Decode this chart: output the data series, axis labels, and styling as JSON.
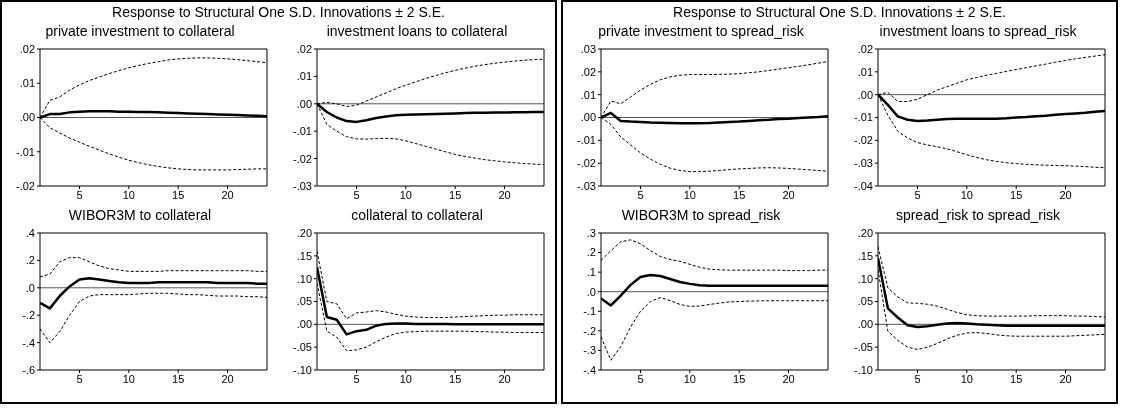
{
  "chart_data": [
    {
      "type": "line",
      "annotations": [
        "Response to Structural One S.D. Innovations ± 2 S.E."
      ],
      "title": "private investment to collateral",
      "x": [
        1,
        2,
        3,
        4,
        5,
        6,
        7,
        8,
        9,
        10,
        11,
        12,
        13,
        14,
        15,
        16,
        17,
        18,
        19,
        20,
        21,
        22,
        23,
        24
      ],
      "xlim": [
        1,
        24
      ],
      "xticks": [
        5,
        10,
        15,
        20
      ],
      "ylim": [
        -0.02,
        0.02
      ],
      "yticks": [
        {
          "value": -0.02,
          "label": "-.02"
        },
        {
          "value": -0.01,
          "label": "-.01"
        },
        {
          "value": 0,
          "label": ".00"
        },
        {
          "value": 0.01,
          "label": ".01"
        },
        {
          "value": 0.02,
          "label": ".02"
        }
      ],
      "ref_lines": [
        {
          "axis": "y",
          "value": 0
        }
      ],
      "series": [
        {
          "color": "#000000",
          "line_style": "solid",
          "values": [
            0,
            0.001,
            0.001,
            0.0015,
            0.0017,
            0.0018,
            0.0018,
            0.0018,
            0.0017,
            0.0017,
            0.0016,
            0.0016,
            0.0015,
            0.0014,
            0.0013,
            0.0012,
            0.0011,
            0.001,
            0.0009,
            0.0008,
            0.0007,
            0.0006,
            0.0005,
            0.0004
          ]
        },
        {
          "color": "#000000",
          "line_style": "dashed",
          "values": [
            0,
            0.005,
            0.006,
            0.008,
            0.0095,
            0.0108,
            0.0118,
            0.0128,
            0.0137,
            0.0145,
            0.0152,
            0.0158,
            0.0163,
            0.0168,
            0.0171,
            0.0173,
            0.0174,
            0.0174,
            0.0173,
            0.0171,
            0.0169,
            0.0166,
            0.0163,
            0.016
          ]
        },
        {
          "color": "#000000",
          "line_style": "dashed",
          "values": [
            0,
            -0.003,
            -0.0045,
            -0.006,
            -0.0072,
            -0.0084,
            -0.0095,
            -0.0106,
            -0.0116,
            -0.0125,
            -0.0132,
            -0.0138,
            -0.0143,
            -0.0147,
            -0.015,
            -0.0152,
            -0.0153,
            -0.0153,
            -0.0153,
            -0.0153,
            -0.0152,
            -0.0151,
            -0.015,
            -0.015
          ]
        }
      ]
    },
    {
      "type": "line",
      "title": "investment loans to collateral",
      "x": [
        1,
        2,
        3,
        4,
        5,
        6,
        7,
        8,
        9,
        10,
        11,
        12,
        13,
        14,
        15,
        16,
        17,
        18,
        19,
        20,
        21,
        22,
        23,
        24
      ],
      "xlim": [
        1,
        24
      ],
      "xticks": [
        5,
        10,
        15,
        20
      ],
      "ylim": [
        -0.03,
        0.02
      ],
      "yticks": [
        {
          "value": -0.03,
          "label": "-.03"
        },
        {
          "value": -0.02,
          "label": "-.02"
        },
        {
          "value": -0.01,
          "label": "-.01"
        },
        {
          "value": 0,
          "label": ".00"
        },
        {
          "value": 0.01,
          "label": ".01"
        },
        {
          "value": 0.02,
          "label": ".02"
        }
      ],
      "ref_lines": [
        {
          "axis": "y",
          "value": 0
        }
      ],
      "series": [
        {
          "color": "#000000",
          "line_style": "solid",
          "values": [
            0,
            -0.003,
            -0.005,
            -0.0063,
            -0.0066,
            -0.006,
            -0.0052,
            -0.0046,
            -0.0042,
            -0.004,
            -0.0039,
            -0.0038,
            -0.0037,
            -0.0036,
            -0.0035,
            -0.0034,
            -0.0033,
            -0.0033,
            -0.0032,
            -0.0032,
            -0.0031,
            -0.0031,
            -0.003,
            -0.003
          ]
        },
        {
          "color": "#000000",
          "line_style": "dashed",
          "values": [
            0,
            0.0005,
            0,
            -0.001,
            -0.0005,
            0.001,
            0.0025,
            0.004,
            0.0055,
            0.0068,
            0.008,
            0.0092,
            0.0103,
            0.0113,
            0.0122,
            0.013,
            0.0137,
            0.0143,
            0.0148,
            0.0152,
            0.0156,
            0.0159,
            0.0161,
            0.0163
          ]
        },
        {
          "color": "#000000",
          "line_style": "dashed",
          "values": [
            0,
            -0.0075,
            -0.01,
            -0.012,
            -0.0128,
            -0.0129,
            -0.0127,
            -0.0126,
            -0.0128,
            -0.0135,
            -0.0145,
            -0.0155,
            -0.0165,
            -0.0175,
            -0.0185,
            -0.0192,
            -0.0198,
            -0.0204,
            -0.0208,
            -0.0212,
            -0.0215,
            -0.0218,
            -0.022,
            -0.0222
          ]
        }
      ]
    },
    {
      "type": "line",
      "title": "WIBOR3M to collateral",
      "x": [
        1,
        2,
        3,
        4,
        5,
        6,
        7,
        8,
        9,
        10,
        11,
        12,
        13,
        14,
        15,
        16,
        17,
        18,
        19,
        20,
        21,
        22,
        23,
        24
      ],
      "xlim": [
        1,
        24
      ],
      "xticks": [
        5,
        10,
        15,
        20
      ],
      "ylim": [
        -0.6,
        0.4
      ],
      "yticks": [
        {
          "value": -0.6,
          "label": "-.6"
        },
        {
          "value": -0.4,
          "label": "-.4"
        },
        {
          "value": -0.2,
          "label": "-.2"
        },
        {
          "value": 0,
          "label": ".0"
        },
        {
          "value": 0.2,
          "label": ".2"
        },
        {
          "value": 0.4,
          "label": ".4"
        }
      ],
      "ref_lines": [
        {
          "axis": "y",
          "value": 0
        }
      ],
      "series": [
        {
          "color": "#000000",
          "line_style": "solid",
          "values": [
            -0.11,
            -0.15,
            -0.06,
            0.01,
            0.06,
            0.07,
            0.06,
            0.05,
            0.04,
            0.035,
            0.035,
            0.035,
            0.04,
            0.04,
            0.04,
            0.04,
            0.04,
            0.04,
            0.035,
            0.035,
            0.035,
            0.035,
            0.03,
            0.03
          ]
        },
        {
          "color": "#000000",
          "line_style": "dashed",
          "values": [
            0.08,
            0.1,
            0.19,
            0.22,
            0.22,
            0.19,
            0.16,
            0.14,
            0.13,
            0.12,
            0.12,
            0.12,
            0.12,
            0.125,
            0.125,
            0.125,
            0.125,
            0.125,
            0.125,
            0.125,
            0.125,
            0.125,
            0.12,
            0.12
          ]
        },
        {
          "color": "#000000",
          "line_style": "dashed",
          "values": [
            -0.3,
            -0.4,
            -0.32,
            -0.2,
            -0.1,
            -0.06,
            -0.05,
            -0.05,
            -0.05,
            -0.05,
            -0.045,
            -0.04,
            -0.04,
            -0.04,
            -0.045,
            -0.05,
            -0.05,
            -0.055,
            -0.06,
            -0.06,
            -0.06,
            -0.065,
            -0.065,
            -0.07
          ]
        }
      ]
    },
    {
      "type": "line",
      "title": "collateral to collateral",
      "x": [
        1,
        2,
        3,
        4,
        5,
        6,
        7,
        8,
        9,
        10,
        11,
        12,
        13,
        14,
        15,
        16,
        17,
        18,
        19,
        20,
        21,
        22,
        23,
        24
      ],
      "xlim": [
        1,
        24
      ],
      "xticks": [
        5,
        10,
        15,
        20
      ],
      "ylim": [
        -0.1,
        0.2
      ],
      "yticks": [
        {
          "value": -0.1,
          "label": "-.10"
        },
        {
          "value": -0.05,
          "label": "-.05"
        },
        {
          "value": 0,
          "label": ".00"
        },
        {
          "value": 0.05,
          "label": ".05"
        },
        {
          "value": 0.1,
          "label": ".10"
        },
        {
          "value": 0.15,
          "label": ".15"
        },
        {
          "value": 0.2,
          "label": ".20"
        }
      ],
      "ref_lines": [
        {
          "axis": "y",
          "value": 0
        }
      ],
      "series": [
        {
          "color": "#000000",
          "line_style": "solid",
          "values": [
            0.125,
            0.016,
            0.01,
            -0.022,
            -0.015,
            -0.012,
            -0.003,
            0.001,
            0.002,
            0.002,
            0.001,
            0.001,
            0.001,
            0.001,
            0,
            0,
            0,
            0,
            0,
            0,
            0,
            0,
            0,
            0
          ]
        },
        {
          "color": "#000000",
          "line_style": "dashed",
          "values": [
            0.16,
            0.05,
            0.045,
            0.012,
            0.025,
            0.027,
            0.03,
            0.027,
            0.022,
            0.018,
            0.016,
            0.015,
            0.015,
            0.015,
            0.016,
            0.017,
            0.018,
            0.019,
            0.02,
            0.02,
            0.021,
            0.021,
            0.021,
            0.021
          ]
        },
        {
          "color": "#000000",
          "line_style": "dashed",
          "values": [
            0.09,
            -0.015,
            -0.028,
            -0.058,
            -0.056,
            -0.05,
            -0.038,
            -0.028,
            -0.02,
            -0.017,
            -0.016,
            -0.015,
            -0.015,
            -0.015,
            -0.015,
            -0.015,
            -0.016,
            -0.016,
            -0.017,
            -0.017,
            -0.018,
            -0.018,
            -0.018,
            -0.018
          ]
        }
      ]
    },
    {
      "type": "line",
      "annotations": [
        "Response to Structural One S.D. Innovations ± 2 S.E."
      ],
      "title": "private investment to spread_risk",
      "x": [
        1,
        2,
        3,
        4,
        5,
        6,
        7,
        8,
        9,
        10,
        11,
        12,
        13,
        14,
        15,
        16,
        17,
        18,
        19,
        20,
        21,
        22,
        23,
        24
      ],
      "xlim": [
        1,
        24
      ],
      "xticks": [
        5,
        10,
        15,
        20
      ],
      "ylim": [
        -0.03,
        0.03
      ],
      "yticks": [
        {
          "value": -0.03,
          "label": "-.03"
        },
        {
          "value": -0.02,
          "label": "-.02"
        },
        {
          "value": -0.01,
          "label": "-.01"
        },
        {
          "value": 0,
          "label": ".00"
        },
        {
          "value": 0.01,
          "label": ".01"
        },
        {
          "value": 0.02,
          "label": ".02"
        },
        {
          "value": 0.03,
          "label": ".03"
        }
      ],
      "ref_lines": [
        {
          "axis": "y",
          "value": 0
        }
      ],
      "series": [
        {
          "color": "#000000",
          "line_style": "solid",
          "values": [
            0,
            0.002,
            -0.0015,
            -0.0018,
            -0.002,
            -0.0022,
            -0.0023,
            -0.0024,
            -0.0025,
            -0.0025,
            -0.0025,
            -0.0024,
            -0.0022,
            -0.002,
            -0.0018,
            -0.0015,
            -0.0012,
            -0.001,
            -0.0007,
            -0.0005,
            -0.0002,
            0,
            0.0002,
            0.0005
          ]
        },
        {
          "color": "#000000",
          "line_style": "dashed",
          "values": [
            0,
            0.0072,
            0.006,
            0.009,
            0.012,
            0.0145,
            0.0165,
            0.0178,
            0.0185,
            0.0188,
            0.0188,
            0.0188,
            0.0189,
            0.019,
            0.0192,
            0.0196,
            0.02,
            0.0206,
            0.0212,
            0.0218,
            0.0224,
            0.0231,
            0.0238,
            0.0245
          ]
        },
        {
          "color": "#000000",
          "line_style": "dashed",
          "values": [
            0,
            -0.003,
            -0.0085,
            -0.012,
            -0.0155,
            -0.0182,
            -0.0205,
            -0.0222,
            -0.0232,
            -0.0237,
            -0.0237,
            -0.0235,
            -0.0232,
            -0.0228,
            -0.0225,
            -0.0223,
            -0.0221,
            -0.022,
            -0.0221,
            -0.0223,
            -0.0226,
            -0.0229,
            -0.0232,
            -0.0235
          ]
        }
      ]
    },
    {
      "type": "line",
      "title": "investment loans to spread_risk",
      "x": [
        1,
        2,
        3,
        4,
        5,
        6,
        7,
        8,
        9,
        10,
        11,
        12,
        13,
        14,
        15,
        16,
        17,
        18,
        19,
        20,
        21,
        22,
        23,
        24
      ],
      "xlim": [
        1,
        24
      ],
      "xticks": [
        5,
        10,
        15,
        20
      ],
      "ylim": [
        -0.04,
        0.02
      ],
      "yticks": [
        {
          "value": -0.04,
          "label": "-.04"
        },
        {
          "value": -0.03,
          "label": "-.03"
        },
        {
          "value": -0.02,
          "label": "-.02"
        },
        {
          "value": -0.01,
          "label": "-.01"
        },
        {
          "value": 0,
          "label": ".00"
        },
        {
          "value": 0.01,
          "label": ".01"
        },
        {
          "value": 0.02,
          "label": ".02"
        }
      ],
      "ref_lines": [
        {
          "axis": "y",
          "value": 0
        }
      ],
      "series": [
        {
          "color": "#000000",
          "line_style": "solid",
          "values": [
            0,
            -0.0045,
            -0.0095,
            -0.011,
            -0.0115,
            -0.0113,
            -0.011,
            -0.0107,
            -0.0106,
            -0.0106,
            -0.0106,
            -0.0106,
            -0.0105,
            -0.0103,
            -0.01,
            -0.0098,
            -0.0095,
            -0.0092,
            -0.0088,
            -0.0085,
            -0.0082,
            -0.0079,
            -0.0075,
            -0.0072
          ]
        },
        {
          "color": "#000000",
          "line_style": "dashed",
          "values": [
            0,
            0.001,
            -0.003,
            -0.003,
            -0.002,
            0,
            0.002,
            0.0035,
            0.005,
            0.0065,
            0.0075,
            0.0085,
            0.0093,
            0.0102,
            0.011,
            0.0118,
            0.0126,
            0.0134,
            0.0142,
            0.015,
            0.0157,
            0.0163,
            0.0169,
            0.0175
          ]
        },
        {
          "color": "#000000",
          "line_style": "dashed",
          "values": [
            0,
            -0.009,
            -0.016,
            -0.019,
            -0.021,
            -0.022,
            -0.0228,
            -0.0237,
            -0.025,
            -0.0263,
            -0.0275,
            -0.0285,
            -0.0292,
            -0.0298,
            -0.0302,
            -0.0305,
            -0.0307,
            -0.0309,
            -0.031,
            -0.0311,
            -0.0313,
            -0.0315,
            -0.0318,
            -0.032
          ]
        }
      ]
    },
    {
      "type": "line",
      "title": "WIBOR3M to spread_risk",
      "x": [
        1,
        2,
        3,
        4,
        5,
        6,
        7,
        8,
        9,
        10,
        11,
        12,
        13,
        14,
        15,
        16,
        17,
        18,
        19,
        20,
        21,
        22,
        23,
        24
      ],
      "xlim": [
        1,
        24
      ],
      "xticks": [
        5,
        10,
        15,
        20
      ],
      "ylim": [
        -0.4,
        0.3
      ],
      "yticks": [
        {
          "value": -0.4,
          "label": "-.4"
        },
        {
          "value": -0.3,
          "label": "-.3"
        },
        {
          "value": -0.2,
          "label": "-.2"
        },
        {
          "value": -0.1,
          "label": "-.1"
        },
        {
          "value": 0,
          "label": ".0"
        },
        {
          "value": 0.1,
          "label": ".1"
        },
        {
          "value": 0.2,
          "label": ".2"
        },
        {
          "value": 0.3,
          "label": ".3"
        }
      ],
      "ref_lines": [
        {
          "axis": "y",
          "value": 0
        }
      ],
      "series": [
        {
          "color": "#000000",
          "line_style": "solid",
          "values": [
            -0.035,
            -0.07,
            -0.02,
            0.035,
            0.075,
            0.085,
            0.08,
            0.065,
            0.05,
            0.04,
            0.033,
            0.03,
            0.03,
            0.03,
            0.03,
            0.031,
            0.031,
            0.031,
            0.031,
            0.031,
            0.031,
            0.031,
            0.031,
            0.031
          ]
        },
        {
          "color": "#000000",
          "line_style": "dashed",
          "values": [
            0.16,
            0.21,
            0.255,
            0.265,
            0.245,
            0.21,
            0.18,
            0.165,
            0.155,
            0.14,
            0.125,
            0.115,
            0.112,
            0.11,
            0.11,
            0.11,
            0.11,
            0.11,
            0.11,
            0.108,
            0.108,
            0.108,
            0.11,
            0.11
          ]
        },
        {
          "color": "#000000",
          "line_style": "dashed",
          "values": [
            -0.23,
            -0.35,
            -0.28,
            -0.18,
            -0.1,
            -0.05,
            -0.03,
            -0.045,
            -0.065,
            -0.075,
            -0.073,
            -0.065,
            -0.058,
            -0.052,
            -0.05,
            -0.048,
            -0.047,
            -0.046,
            -0.046,
            -0.046,
            -0.046,
            -0.046,
            -0.046,
            -0.046
          ]
        }
      ]
    },
    {
      "type": "line",
      "title": "spread_risk to spread_risk",
      "x": [
        1,
        2,
        3,
        4,
        5,
        6,
        7,
        8,
        9,
        10,
        11,
        12,
        13,
        14,
        15,
        16,
        17,
        18,
        19,
        20,
        21,
        22,
        23,
        24
      ],
      "xlim": [
        1,
        24
      ],
      "xticks": [
        5,
        10,
        15,
        20
      ],
      "ylim": [
        -0.1,
        0.2
      ],
      "yticks": [
        {
          "value": -0.1,
          "label": "-.10"
        },
        {
          "value": -0.05,
          "label": "-.05"
        },
        {
          "value": 0,
          "label": ".00"
        },
        {
          "value": 0.05,
          "label": ".05"
        },
        {
          "value": 0.1,
          "label": ".10"
        },
        {
          "value": 0.15,
          "label": ".15"
        },
        {
          "value": 0.2,
          "label": ".20"
        }
      ],
      "ref_lines": [
        {
          "axis": "y",
          "value": 0
        }
      ],
      "series": [
        {
          "color": "#000000",
          "line_style": "solid",
          "values": [
            0.145,
            0.035,
            0.015,
            -0.002,
            -0.006,
            -0.004,
            -0.001,
            0.002,
            0.003,
            0.002,
            0,
            -0.001,
            -0.002,
            -0.003,
            -0.003,
            -0.003,
            -0.003,
            -0.003,
            -0.003,
            -0.003,
            -0.003,
            -0.003,
            -0.003,
            -0.003
          ]
        },
        {
          "color": "#000000",
          "line_style": "dashed",
          "values": [
            0.17,
            0.08,
            0.06,
            0.047,
            0.046,
            0.044,
            0.04,
            0.033,
            0.026,
            0.021,
            0.019,
            0.018,
            0.018,
            0.018,
            0.018,
            0.018,
            0.019,
            0.019,
            0.019,
            0.019,
            0.018,
            0.018,
            0.017,
            0.016
          ]
        },
        {
          "color": "#000000",
          "line_style": "dashed",
          "values": [
            0.12,
            -0.015,
            -0.035,
            -0.05,
            -0.055,
            -0.05,
            -0.042,
            -0.032,
            -0.024,
            -0.019,
            -0.018,
            -0.02,
            -0.023,
            -0.025,
            -0.026,
            -0.026,
            -0.026,
            -0.026,
            -0.026,
            -0.026,
            -0.025,
            -0.024,
            -0.023,
            -0.022
          ]
        }
      ]
    }
  ]
}
